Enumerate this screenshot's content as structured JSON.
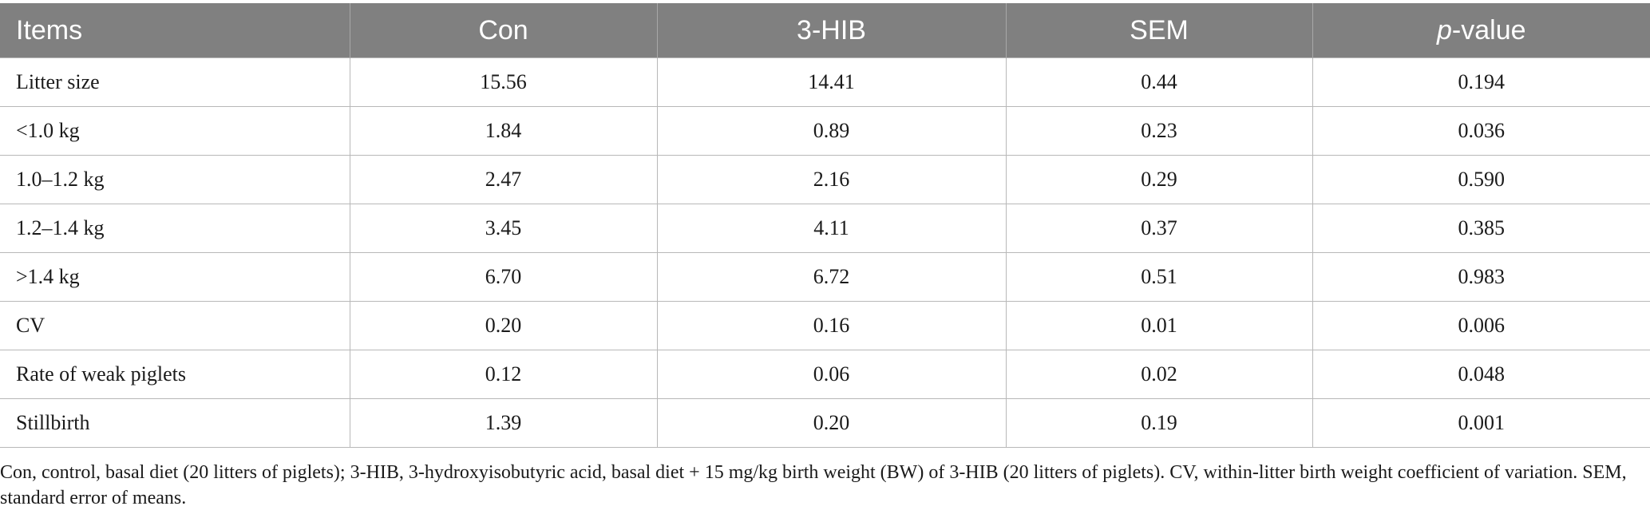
{
  "table": {
    "headers": [
      "Items",
      "Con",
      "3-HIB",
      "SEM",
      "-value"
    ],
    "header_p_prefix": "p",
    "rows": [
      [
        "Litter size",
        "15.56",
        "14.41",
        "0.44",
        "0.194"
      ],
      [
        "<1.0 kg",
        "1.84",
        "0.89",
        "0.23",
        "0.036"
      ],
      [
        "1.0–1.2 kg",
        "2.47",
        "2.16",
        "0.29",
        "0.590"
      ],
      [
        "1.2–1.4 kg",
        "3.45",
        "4.11",
        "0.37",
        "0.385"
      ],
      [
        ">1.4 kg",
        "6.70",
        "6.72",
        "0.51",
        "0.983"
      ],
      [
        "CV",
        "0.20",
        "0.16",
        "0.01",
        "0.006"
      ],
      [
        "Rate of weak piglets",
        "0.12",
        "0.06",
        "0.02",
        "0.048"
      ],
      [
        "Stillbirth",
        "1.39",
        "0.20",
        "0.19",
        "0.001"
      ]
    ]
  },
  "footnote": "Con, control, basal diet (20 litters of piglets); 3-HIB, 3-hydroxyisobutyric acid, basal diet + 15 mg/kg birth weight (BW) of 3-HIB (20 litters of piglets). CV, within-litter birth weight coefficient of variation. SEM, standard error of means.",
  "colors": {
    "header_bg": "#808080",
    "header_text": "#ffffff",
    "grid": "#b8b8b8"
  }
}
